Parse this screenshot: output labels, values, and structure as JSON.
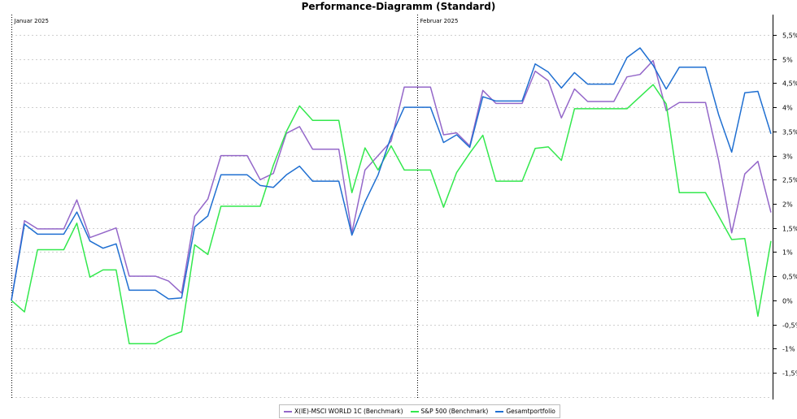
{
  "chart_data": {
    "type": "line",
    "title": "Performance-Diagramm (Standard)",
    "xlabel": "",
    "ylabel": "",
    "ylim": [
      -1.5,
      5.5
    ],
    "y_ticks": [
      5.5,
      5,
      4.5,
      4,
      3.5,
      3,
      2.5,
      2,
      1.5,
      1,
      0.5,
      0,
      -0.5,
      -1,
      -1.5
    ],
    "y_tick_labels": [
      "5,5%",
      "5%",
      "4,5%",
      "4%",
      "3,5%",
      "3%",
      "2,5%",
      "2%",
      "1,5%",
      "1%",
      "0,5%",
      "0%",
      "-0,5%",
      "-1%",
      "-1,5%"
    ],
    "month_markers": [
      {
        "label": "Januar 2025",
        "index": 0
      },
      {
        "label": "Februar 2025",
        "index": 31
      }
    ],
    "grid": true,
    "legend_position": "bottom-center",
    "series": [
      {
        "name": "X(IE)-MSCI WORLD 1C (Benchmark)",
        "color": "#9467c9",
        "values": [
          0,
          1.65,
          1.48,
          1.48,
          1.48,
          2.08,
          1.3,
          1.4,
          1.5,
          0.5,
          0.5,
          0.5,
          0.4,
          0.15,
          1.75,
          2.1,
          3.0,
          3.0,
          3.0,
          2.5,
          2.63,
          3.46,
          3.6,
          3.13,
          3.13,
          3.13,
          1.4,
          2.7,
          3.0,
          3.3,
          4.42,
          4.42,
          4.42,
          3.43,
          3.47,
          3.2,
          4.35,
          4.08,
          4.08,
          4.08,
          4.75,
          4.55,
          3.78,
          4.38,
          4.12,
          4.12,
          4.12,
          4.63,
          4.68,
          4.97,
          3.93,
          4.1,
          4.1,
          4.1,
          2.9,
          1.4,
          2.62,
          2.88,
          1.82
        ]
      },
      {
        "name": "S&P 500 (Benchmark)",
        "color": "#33e84d",
        "values": [
          0,
          -0.24,
          1.05,
          1.05,
          1.05,
          1.6,
          0.48,
          0.63,
          0.63,
          -0.9,
          -0.9,
          -0.9,
          -0.75,
          -0.65,
          1.15,
          0.95,
          1.95,
          1.95,
          1.95,
          1.95,
          2.8,
          3.5,
          4.03,
          3.73,
          3.73,
          3.73,
          2.23,
          3.16,
          2.7,
          3.2,
          2.7,
          2.7,
          2.7,
          1.93,
          2.65,
          3.05,
          3.42,
          2.47,
          2.47,
          2.47,
          3.15,
          3.18,
          2.9,
          3.97,
          3.97,
          3.97,
          3.97,
          3.97,
          4.22,
          4.47,
          4.07,
          2.23,
          2.23,
          2.23,
          1.75,
          1.26,
          1.28,
          -0.33,
          1.23
        ]
      },
      {
        "name": "Gesamtportfolio",
        "color": "#1f6fd1",
        "values": [
          0,
          1.58,
          1.37,
          1.37,
          1.37,
          1.83,
          1.23,
          1.08,
          1.17,
          0.21,
          0.21,
          0.21,
          0.03,
          0.05,
          1.52,
          1.75,
          2.6,
          2.6,
          2.6,
          2.38,
          2.34,
          2.6,
          2.78,
          2.47,
          2.47,
          2.47,
          1.35,
          2.04,
          2.6,
          3.4,
          4.0,
          4.0,
          4.0,
          3.27,
          3.43,
          3.17,
          4.22,
          4.13,
          4.13,
          4.13,
          4.9,
          4.73,
          4.4,
          4.72,
          4.48,
          4.48,
          4.48,
          5.03,
          5.23,
          4.87,
          4.38,
          4.83,
          4.83,
          4.83,
          3.85,
          3.07,
          4.3,
          4.33,
          3.45
        ]
      }
    ]
  }
}
